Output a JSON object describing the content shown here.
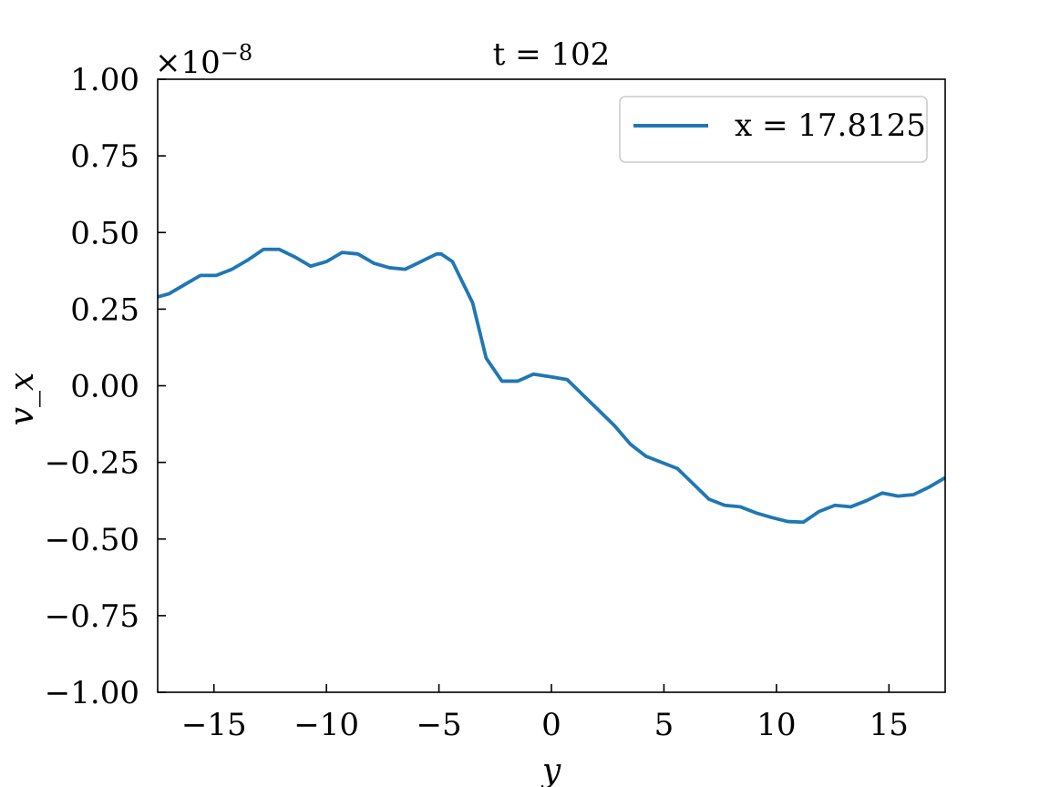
{
  "chart_data": {
    "type": "line",
    "title": "t = 102",
    "xlabel": "y",
    "ylabel": "v_x",
    "y_offset_label": "×10",
    "y_offset_exponent": "−8",
    "xlim": [
      -17.5,
      17.5
    ],
    "ylim": [
      -1.0,
      1.0
    ],
    "x_ticks": [
      -15,
      -10,
      -5,
      0,
      5,
      10,
      15
    ],
    "x_tick_labels": [
      "−15",
      "−10",
      "−5",
      "0",
      "5",
      "10",
      "15"
    ],
    "y_ticks": [
      1.0,
      0.75,
      0.5,
      0.25,
      0.0,
      -0.25,
      -0.5,
      -0.75,
      -1.0
    ],
    "y_tick_labels": [
      "1.00",
      "0.75",
      "0.50",
      "0.25",
      "0.00",
      "−0.25",
      "−0.50",
      "−0.75",
      "−1.00"
    ],
    "grid": false,
    "legend_position": "top-right",
    "color": "#1f77b4",
    "series": [
      {
        "name": "x = 17.8125",
        "x": [
          -17.5,
          -17.0,
          -16.3,
          -15.6,
          -14.9,
          -14.2,
          -13.5,
          -12.8,
          -12.1,
          -11.4,
          -10.7,
          -10.0,
          -9.3,
          -8.6,
          -7.9,
          -7.2,
          -6.5,
          -5.8,
          -5.1,
          -4.9,
          -4.4,
          -3.5,
          -2.9,
          -2.2,
          -1.5,
          -0.8,
          -0.1,
          0.7,
          1.4,
          2.1,
          2.8,
          3.5,
          4.2,
          4.9,
          5.6,
          6.3,
          7.0,
          7.7,
          8.4,
          9.1,
          9.8,
          10.5,
          11.2,
          11.9,
          12.6,
          13.3,
          14.0,
          14.7,
          15.4,
          16.1,
          16.8,
          17.5
        ],
        "y": [
          0.29,
          0.3,
          0.33,
          0.36,
          0.36,
          0.38,
          0.41,
          0.445,
          0.445,
          0.42,
          0.39,
          0.405,
          0.435,
          0.43,
          0.4,
          0.385,
          0.38,
          0.405,
          0.43,
          0.43,
          0.405,
          0.27,
          0.09,
          0.015,
          0.015,
          0.038,
          0.03,
          0.02,
          -0.03,
          -0.08,
          -0.13,
          -0.19,
          -0.23,
          -0.25,
          -0.27,
          -0.32,
          -0.37,
          -0.39,
          -0.395,
          -0.415,
          -0.43,
          -0.443,
          -0.445,
          -0.41,
          -0.39,
          -0.395,
          -0.375,
          -0.35,
          -0.36,
          -0.355,
          -0.33,
          -0.3
        ]
      }
    ]
  }
}
